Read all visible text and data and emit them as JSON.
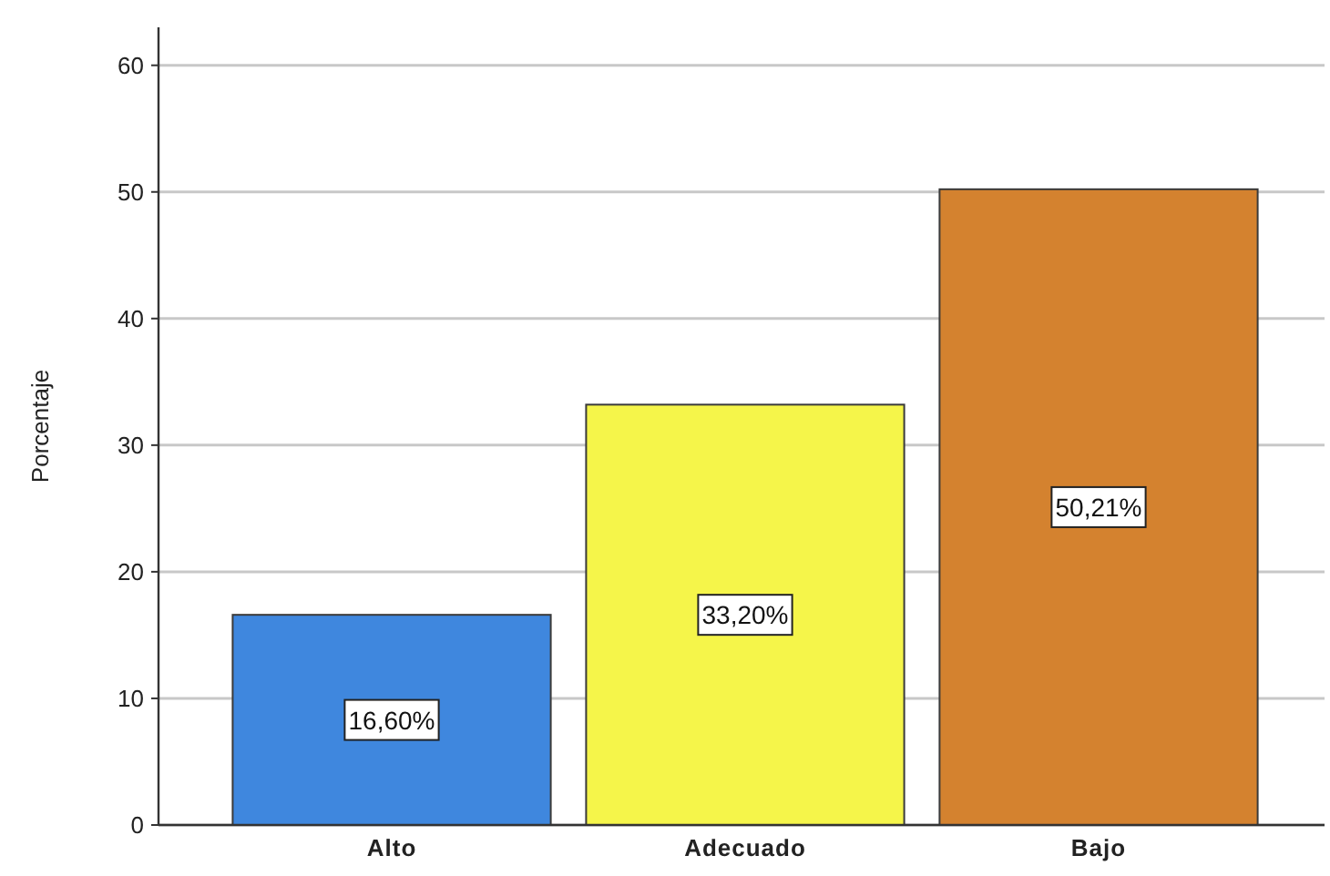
{
  "chart_data": {
    "type": "bar",
    "ylabel": "Porcentaje",
    "categories": [
      "Alto",
      "Adecuado",
      "Bajo"
    ],
    "values": [
      16.6,
      33.2,
      50.21
    ],
    "colors": [
      "#3f87de",
      "#f5f54a",
      "#d4822f"
    ],
    "value_labels": [
      "16,60%",
      "33,20%",
      "50,21%"
    ],
    "ylim": [
      0,
      63
    ],
    "yticks": [
      0,
      10,
      20,
      30,
      40,
      50,
      60
    ],
    "grid": "y"
  }
}
